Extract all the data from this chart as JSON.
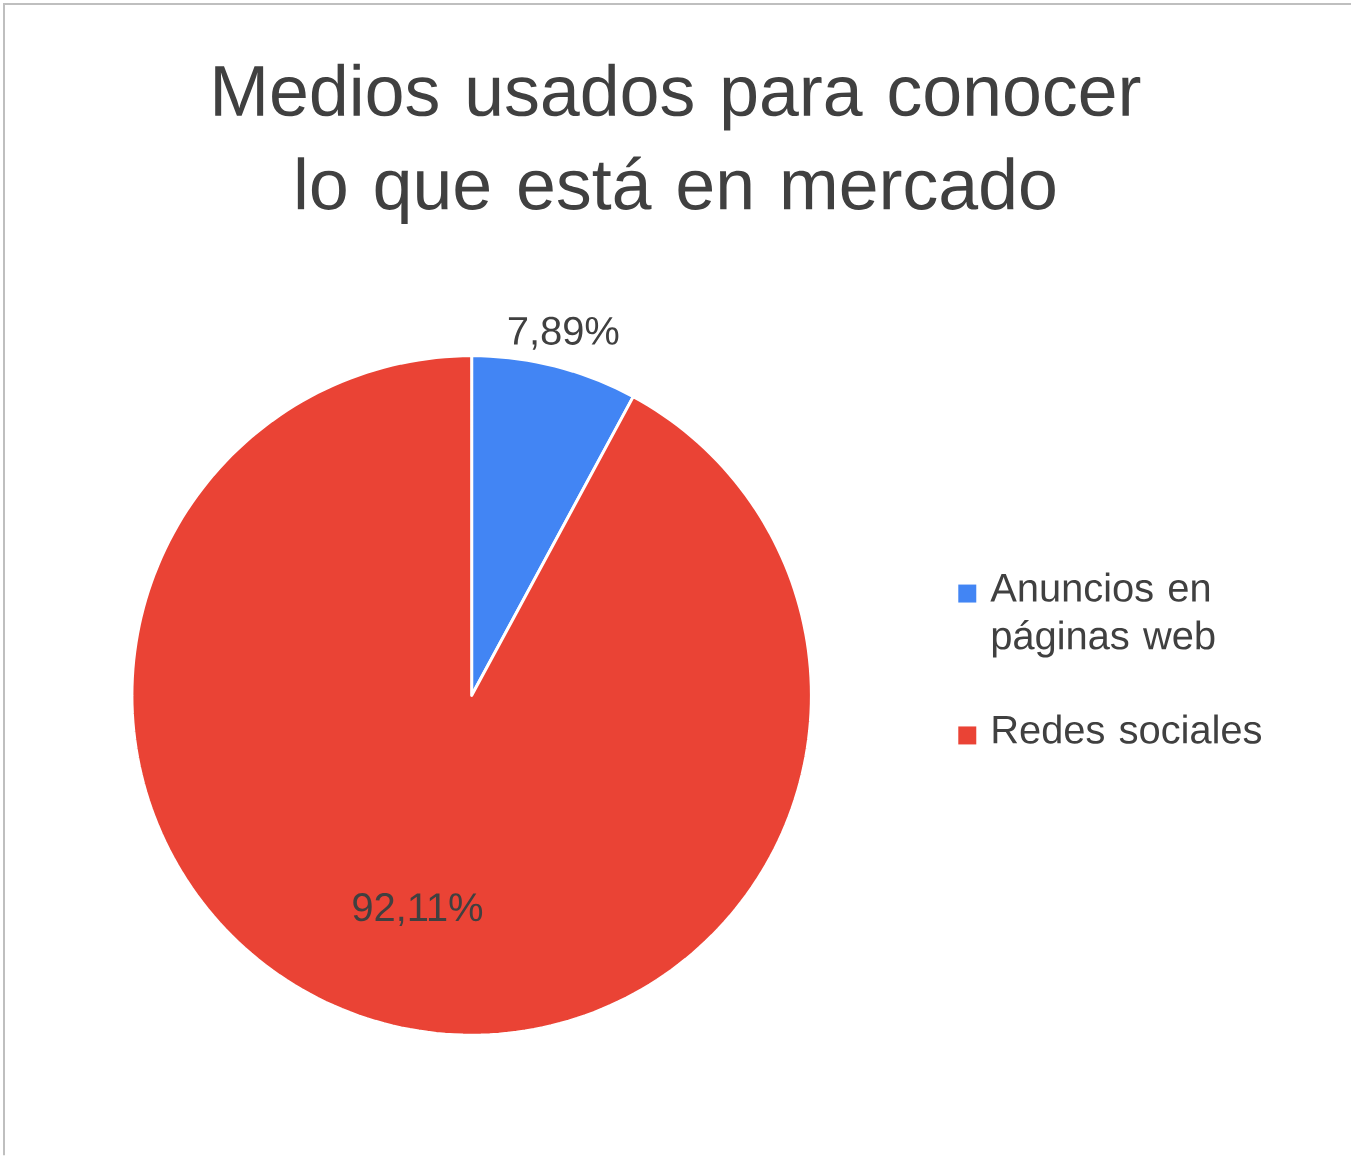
{
  "chart_data": {
    "type": "pie",
    "title": "Medios usados para conocer lo que está en mercado",
    "categories": [
      "Anuncios en páginas web",
      "Redes sociales"
    ],
    "values": [
      7.89,
      92.11
    ],
    "colors": [
      "#4285f4",
      "#ea4335"
    ],
    "value_labels": [
      "7,89%",
      "92,11%"
    ],
    "legend": "right"
  }
}
